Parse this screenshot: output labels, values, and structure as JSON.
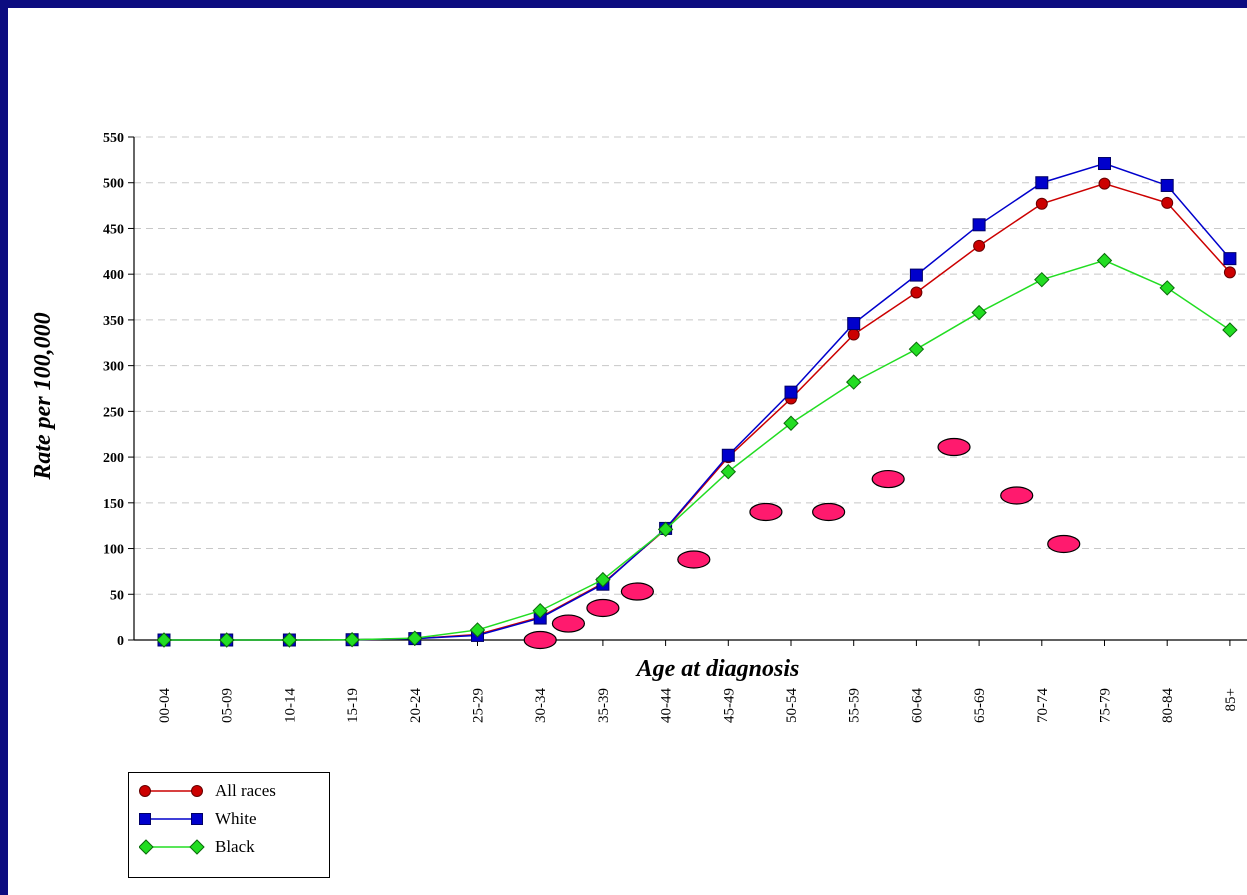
{
  "chart_data": {
    "type": "line",
    "xlabel": "Age at diagnosis",
    "ylabel": "Rate per 100,000",
    "ylim": [
      0,
      550
    ],
    "yticks": [
      0,
      50,
      100,
      150,
      200,
      250,
      300,
      350,
      400,
      450,
      500,
      550
    ],
    "grid": "horizontal-dashed",
    "legend_position": "bottom-left",
    "categories": [
      "00-04",
      "05-09",
      "10-14",
      "15-19",
      "20-24",
      "25-29",
      "30-34",
      "35-39",
      "40-44",
      "45-49",
      "50-54",
      "55-59",
      "60-64",
      "65-69",
      "70-74",
      "75-79",
      "80-84",
      "85+"
    ],
    "series": [
      {
        "name": "All races",
        "color": "#cc0000",
        "marker": "circle",
        "values": [
          0,
          0,
          0,
          0.3,
          1.5,
          6,
          25,
          62,
          121,
          200,
          264,
          334,
          380,
          431,
          477,
          499,
          478,
          402
        ]
      },
      {
        "name": "White",
        "color": "#0000cc",
        "marker": "square",
        "values": [
          0,
          0,
          0,
          0.3,
          1.5,
          5,
          24,
          61,
          122,
          202,
          271,
          346,
          399,
          454,
          500,
          521,
          497,
          417
        ]
      },
      {
        "name": "Black",
        "color": "#22dd22",
        "marker": "diamond",
        "values": [
          0,
          0,
          0,
          0.3,
          2,
          11,
          32,
          66,
          121,
          184,
          237,
          282,
          318,
          358,
          394,
          415,
          385,
          339
        ]
      }
    ],
    "overlay_points": {
      "color": "#ff1a6e",
      "marker": "ellipse",
      "points": [
        {
          "x": 6.0,
          "y": 0
        },
        {
          "x": 6.45,
          "y": 18
        },
        {
          "x": 7.0,
          "y": 35
        },
        {
          "x": 7.55,
          "y": 53
        },
        {
          "x": 8.45,
          "y": 88
        },
        {
          "x": 9.6,
          "y": 140
        },
        {
          "x": 10.6,
          "y": 140
        },
        {
          "x": 11.55,
          "y": 176
        },
        {
          "x": 12.6,
          "y": 211
        },
        {
          "x": 13.6,
          "y": 158
        },
        {
          "x": 14.35,
          "y": 105
        }
      ]
    }
  }
}
